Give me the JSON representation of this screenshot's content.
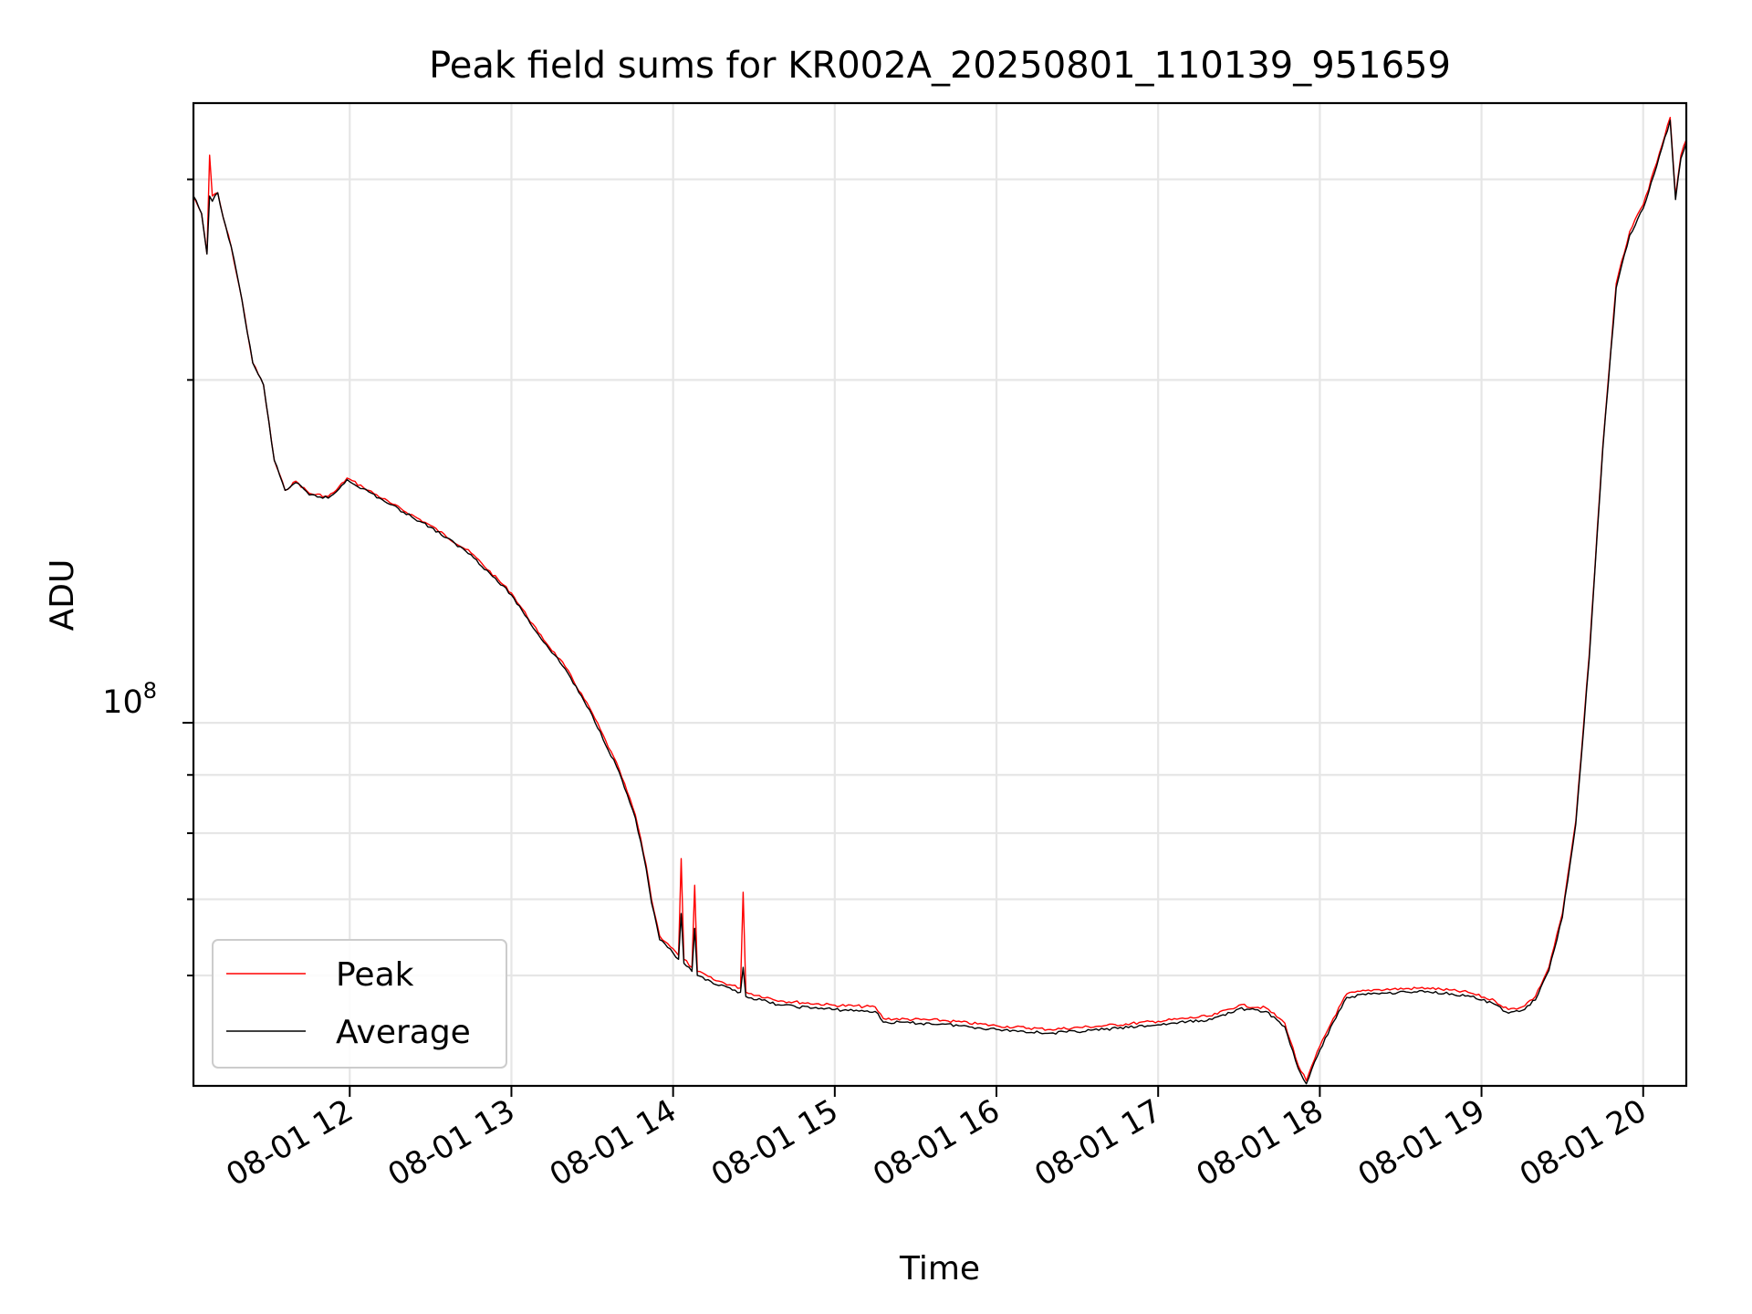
{
  "chart_data": {
    "type": "line",
    "title": "Peak field sums for KR002A_20250801_110139_951659",
    "xlabel": "Time",
    "ylabel": "ADU",
    "y_scale": "log",
    "ytick_label_base": "10",
    "ytick_label_exp": "8",
    "xticks": [
      "08-01 12",
      "08-01 13",
      "08-01 14",
      "08-01 15",
      "08-01 16",
      "08-01 17",
      "08-01 18",
      "08-01 19",
      "08-01 20"
    ],
    "xlim": [
      "2025-08-01 11:02",
      "2025-08-01 20:16"
    ],
    "ylim": [
      48000000,
      350000000
    ],
    "grid": true,
    "legend_position": "lower-left",
    "series": [
      {
        "name": "Peak",
        "color": "#ff0000",
        "points": [
          [
            "2025-08-01 11:02",
            290000000
          ],
          [
            "2025-08-01 11:05",
            280000000
          ],
          [
            "2025-08-01 11:07",
            258000000
          ],
          [
            "2025-08-01 11:08",
            315000000
          ],
          [
            "2025-08-01 11:09",
            290000000
          ],
          [
            "2025-08-01 11:11",
            292000000
          ],
          [
            "2025-08-01 11:13",
            278000000
          ],
          [
            "2025-08-01 11:16",
            262000000
          ],
          [
            "2025-08-01 11:20",
            235000000
          ],
          [
            "2025-08-01 11:24",
            207000000
          ],
          [
            "2025-08-01 11:28",
            198000000
          ],
          [
            "2025-08-01 11:32",
            170000000
          ],
          [
            "2025-08-01 11:36",
            160000000
          ],
          [
            "2025-08-01 11:40",
            163000000
          ],
          [
            "2025-08-01 11:45",
            159000000
          ],
          [
            "2025-08-01 11:52",
            158000000
          ],
          [
            "2025-08-01 11:55",
            160000000
          ],
          [
            "2025-08-01 11:59",
            164000000
          ],
          [
            "2025-08-01 12:05",
            161000000
          ],
          [
            "2025-08-01 12:15",
            156000000
          ],
          [
            "2025-08-01 12:30",
            149000000
          ],
          [
            "2025-08-01 12:45",
            141000000
          ],
          [
            "2025-08-01 13:00",
            130000000
          ],
          [
            "2025-08-01 13:10",
            120000000
          ],
          [
            "2025-08-01 13:20",
            112000000
          ],
          [
            "2025-08-01 13:30",
            102000000
          ],
          [
            "2025-08-01 13:40",
            91000000
          ],
          [
            "2025-08-01 13:46",
            83000000
          ],
          [
            "2025-08-01 13:50",
            75000000
          ],
          [
            "2025-08-01 13:52",
            70000000
          ],
          [
            "2025-08-01 13:55",
            65000000
          ],
          [
            "2025-08-01 13:58",
            64000000
          ],
          [
            "2025-08-01 14:02",
            62500000
          ],
          [
            "2025-08-01 14:03",
            76000000
          ],
          [
            "2025-08-01 14:04",
            62000000
          ],
          [
            "2025-08-01 14:07",
            61000000
          ],
          [
            "2025-08-01 14:08",
            72000000
          ],
          [
            "2025-08-01 14:09",
            60500000
          ],
          [
            "2025-08-01 14:15",
            59500000
          ],
          [
            "2025-08-01 14:25",
            58500000
          ],
          [
            "2025-08-01 14:26",
            71000000
          ],
          [
            "2025-08-01 14:27",
            58000000
          ],
          [
            "2025-08-01 14:40",
            57000000
          ],
          [
            "2025-08-01 15:00",
            56500000
          ],
          [
            "2025-08-01 15:15",
            56300000
          ],
          [
            "2025-08-01 15:18",
            55000000
          ],
          [
            "2025-08-01 15:40",
            54800000
          ],
          [
            "2025-08-01 16:00",
            54200000
          ],
          [
            "2025-08-01 16:20",
            53800000
          ],
          [
            "2025-08-01 16:40",
            54200000
          ],
          [
            "2025-08-01 17:00",
            54700000
          ],
          [
            "2025-08-01 17:20",
            55300000
          ],
          [
            "2025-08-01 17:30",
            56500000
          ],
          [
            "2025-08-01 17:40",
            56200000
          ],
          [
            "2025-08-01 17:47",
            54500000
          ],
          [
            "2025-08-01 17:52",
            50000000
          ],
          [
            "2025-08-01 17:55",
            48500000
          ],
          [
            "2025-08-01 18:00",
            52000000
          ],
          [
            "2025-08-01 18:05",
            55000000
          ],
          [
            "2025-08-01 18:10",
            57800000
          ],
          [
            "2025-08-01 18:20",
            58300000
          ],
          [
            "2025-08-01 18:40",
            58500000
          ],
          [
            "2025-08-01 18:55",
            58000000
          ],
          [
            "2025-08-01 19:05",
            57000000
          ],
          [
            "2025-08-01 19:10",
            56000000
          ],
          [
            "2025-08-01 19:15",
            56300000
          ],
          [
            "2025-08-01 19:20",
            57500000
          ],
          [
            "2025-08-01 19:25",
            61000000
          ],
          [
            "2025-08-01 19:30",
            68000000
          ],
          [
            "2025-08-01 19:35",
            82000000
          ],
          [
            "2025-08-01 19:40",
            115000000
          ],
          [
            "2025-08-01 19:45",
            175000000
          ],
          [
            "2025-08-01 19:50",
            243000000
          ],
          [
            "2025-08-01 19:55",
            270000000
          ],
          [
            "2025-08-01 20:00",
            285000000
          ],
          [
            "2025-08-01 20:05",
            310000000
          ],
          [
            "2025-08-01 20:10",
            340000000
          ],
          [
            "2025-08-01 20:12",
            290000000
          ],
          [
            "2025-08-01 20:14",
            315000000
          ],
          [
            "2025-08-01 20:16",
            325000000
          ]
        ]
      },
      {
        "name": "Average",
        "color": "#000000",
        "points": [
          [
            "2025-08-01 11:02",
            290000000
          ],
          [
            "2025-08-01 11:05",
            280000000
          ],
          [
            "2025-08-01 11:07",
            258000000
          ],
          [
            "2025-08-01 11:08",
            290000000
          ],
          [
            "2025-08-01 11:09",
            287000000
          ],
          [
            "2025-08-01 11:11",
            292000000
          ],
          [
            "2025-08-01 11:13",
            278000000
          ],
          [
            "2025-08-01 11:16",
            262000000
          ],
          [
            "2025-08-01 11:20",
            235000000
          ],
          [
            "2025-08-01 11:24",
            207000000
          ],
          [
            "2025-08-01 11:28",
            198000000
          ],
          [
            "2025-08-01 11:32",
            170000000
          ],
          [
            "2025-08-01 11:36",
            160000000
          ],
          [
            "2025-08-01 11:40",
            162500000
          ],
          [
            "2025-08-01 11:45",
            158500000
          ],
          [
            "2025-08-01 11:52",
            157500000
          ],
          [
            "2025-08-01 11:55",
            159500000
          ],
          [
            "2025-08-01 11:59",
            163500000
          ],
          [
            "2025-08-01 12:05",
            160500000
          ],
          [
            "2025-08-01 12:15",
            155500000
          ],
          [
            "2025-08-01 12:30",
            148500000
          ],
          [
            "2025-08-01 12:45",
            140500000
          ],
          [
            "2025-08-01 13:00",
            129500000
          ],
          [
            "2025-08-01 13:10",
            119500000
          ],
          [
            "2025-08-01 13:20",
            111500000
          ],
          [
            "2025-08-01 13:30",
            101500000
          ],
          [
            "2025-08-01 13:40",
            90500000
          ],
          [
            "2025-08-01 13:46",
            82500000
          ],
          [
            "2025-08-01 13:50",
            74500000
          ],
          [
            "2025-08-01 13:52",
            69500000
          ],
          [
            "2025-08-01 13:55",
            64500000
          ],
          [
            "2025-08-01 13:58",
            63500000
          ],
          [
            "2025-08-01 14:02",
            62000000
          ],
          [
            "2025-08-01 14:03",
            68000000
          ],
          [
            "2025-08-01 14:04",
            61500000
          ],
          [
            "2025-08-01 14:07",
            60500000
          ],
          [
            "2025-08-01 14:08",
            66000000
          ],
          [
            "2025-08-01 14:09",
            60000000
          ],
          [
            "2025-08-01 14:15",
            59000000
          ],
          [
            "2025-08-01 14:25",
            58000000
          ],
          [
            "2025-08-01 14:26",
            61000000
          ],
          [
            "2025-08-01 14:27",
            57500000
          ],
          [
            "2025-08-01 14:40",
            56500000
          ],
          [
            "2025-08-01 15:00",
            56000000
          ],
          [
            "2025-08-01 15:15",
            55800000
          ],
          [
            "2025-08-01 15:18",
            54600000
          ],
          [
            "2025-08-01 15:40",
            54400000
          ],
          [
            "2025-08-01 16:00",
            53800000
          ],
          [
            "2025-08-01 16:20",
            53400000
          ],
          [
            "2025-08-01 16:40",
            53800000
          ],
          [
            "2025-08-01 17:00",
            54300000
          ],
          [
            "2025-08-01 17:20",
            54900000
          ],
          [
            "2025-08-01 17:30",
            56100000
          ],
          [
            "2025-08-01 17:40",
            55800000
          ],
          [
            "2025-08-01 17:47",
            54100000
          ],
          [
            "2025-08-01 17:52",
            49700000
          ],
          [
            "2025-08-01 17:55",
            48200000
          ],
          [
            "2025-08-01 18:00",
            51600000
          ],
          [
            "2025-08-01 18:05",
            54600000
          ],
          [
            "2025-08-01 18:10",
            57400000
          ],
          [
            "2025-08-01 18:20",
            57900000
          ],
          [
            "2025-08-01 18:40",
            58100000
          ],
          [
            "2025-08-01 18:55",
            57600000
          ],
          [
            "2025-08-01 19:05",
            56600000
          ],
          [
            "2025-08-01 19:10",
            55600000
          ],
          [
            "2025-08-01 19:15",
            55900000
          ],
          [
            "2025-08-01 19:20",
            57100000
          ],
          [
            "2025-08-01 19:25",
            60600000
          ],
          [
            "2025-08-01 19:30",
            67500000
          ],
          [
            "2025-08-01 19:35",
            81500000
          ],
          [
            "2025-08-01 19:40",
            114000000
          ],
          [
            "2025-08-01 19:45",
            174000000
          ],
          [
            "2025-08-01 19:50",
            241000000
          ],
          [
            "2025-08-01 19:55",
            268000000
          ],
          [
            "2025-08-01 20:00",
            283000000
          ],
          [
            "2025-08-01 20:05",
            308000000
          ],
          [
            "2025-08-01 20:10",
            338000000
          ],
          [
            "2025-08-01 20:12",
            288000000
          ],
          [
            "2025-08-01 20:14",
            313000000
          ],
          [
            "2025-08-01 20:16",
            323000000
          ]
        ]
      }
    ]
  }
}
